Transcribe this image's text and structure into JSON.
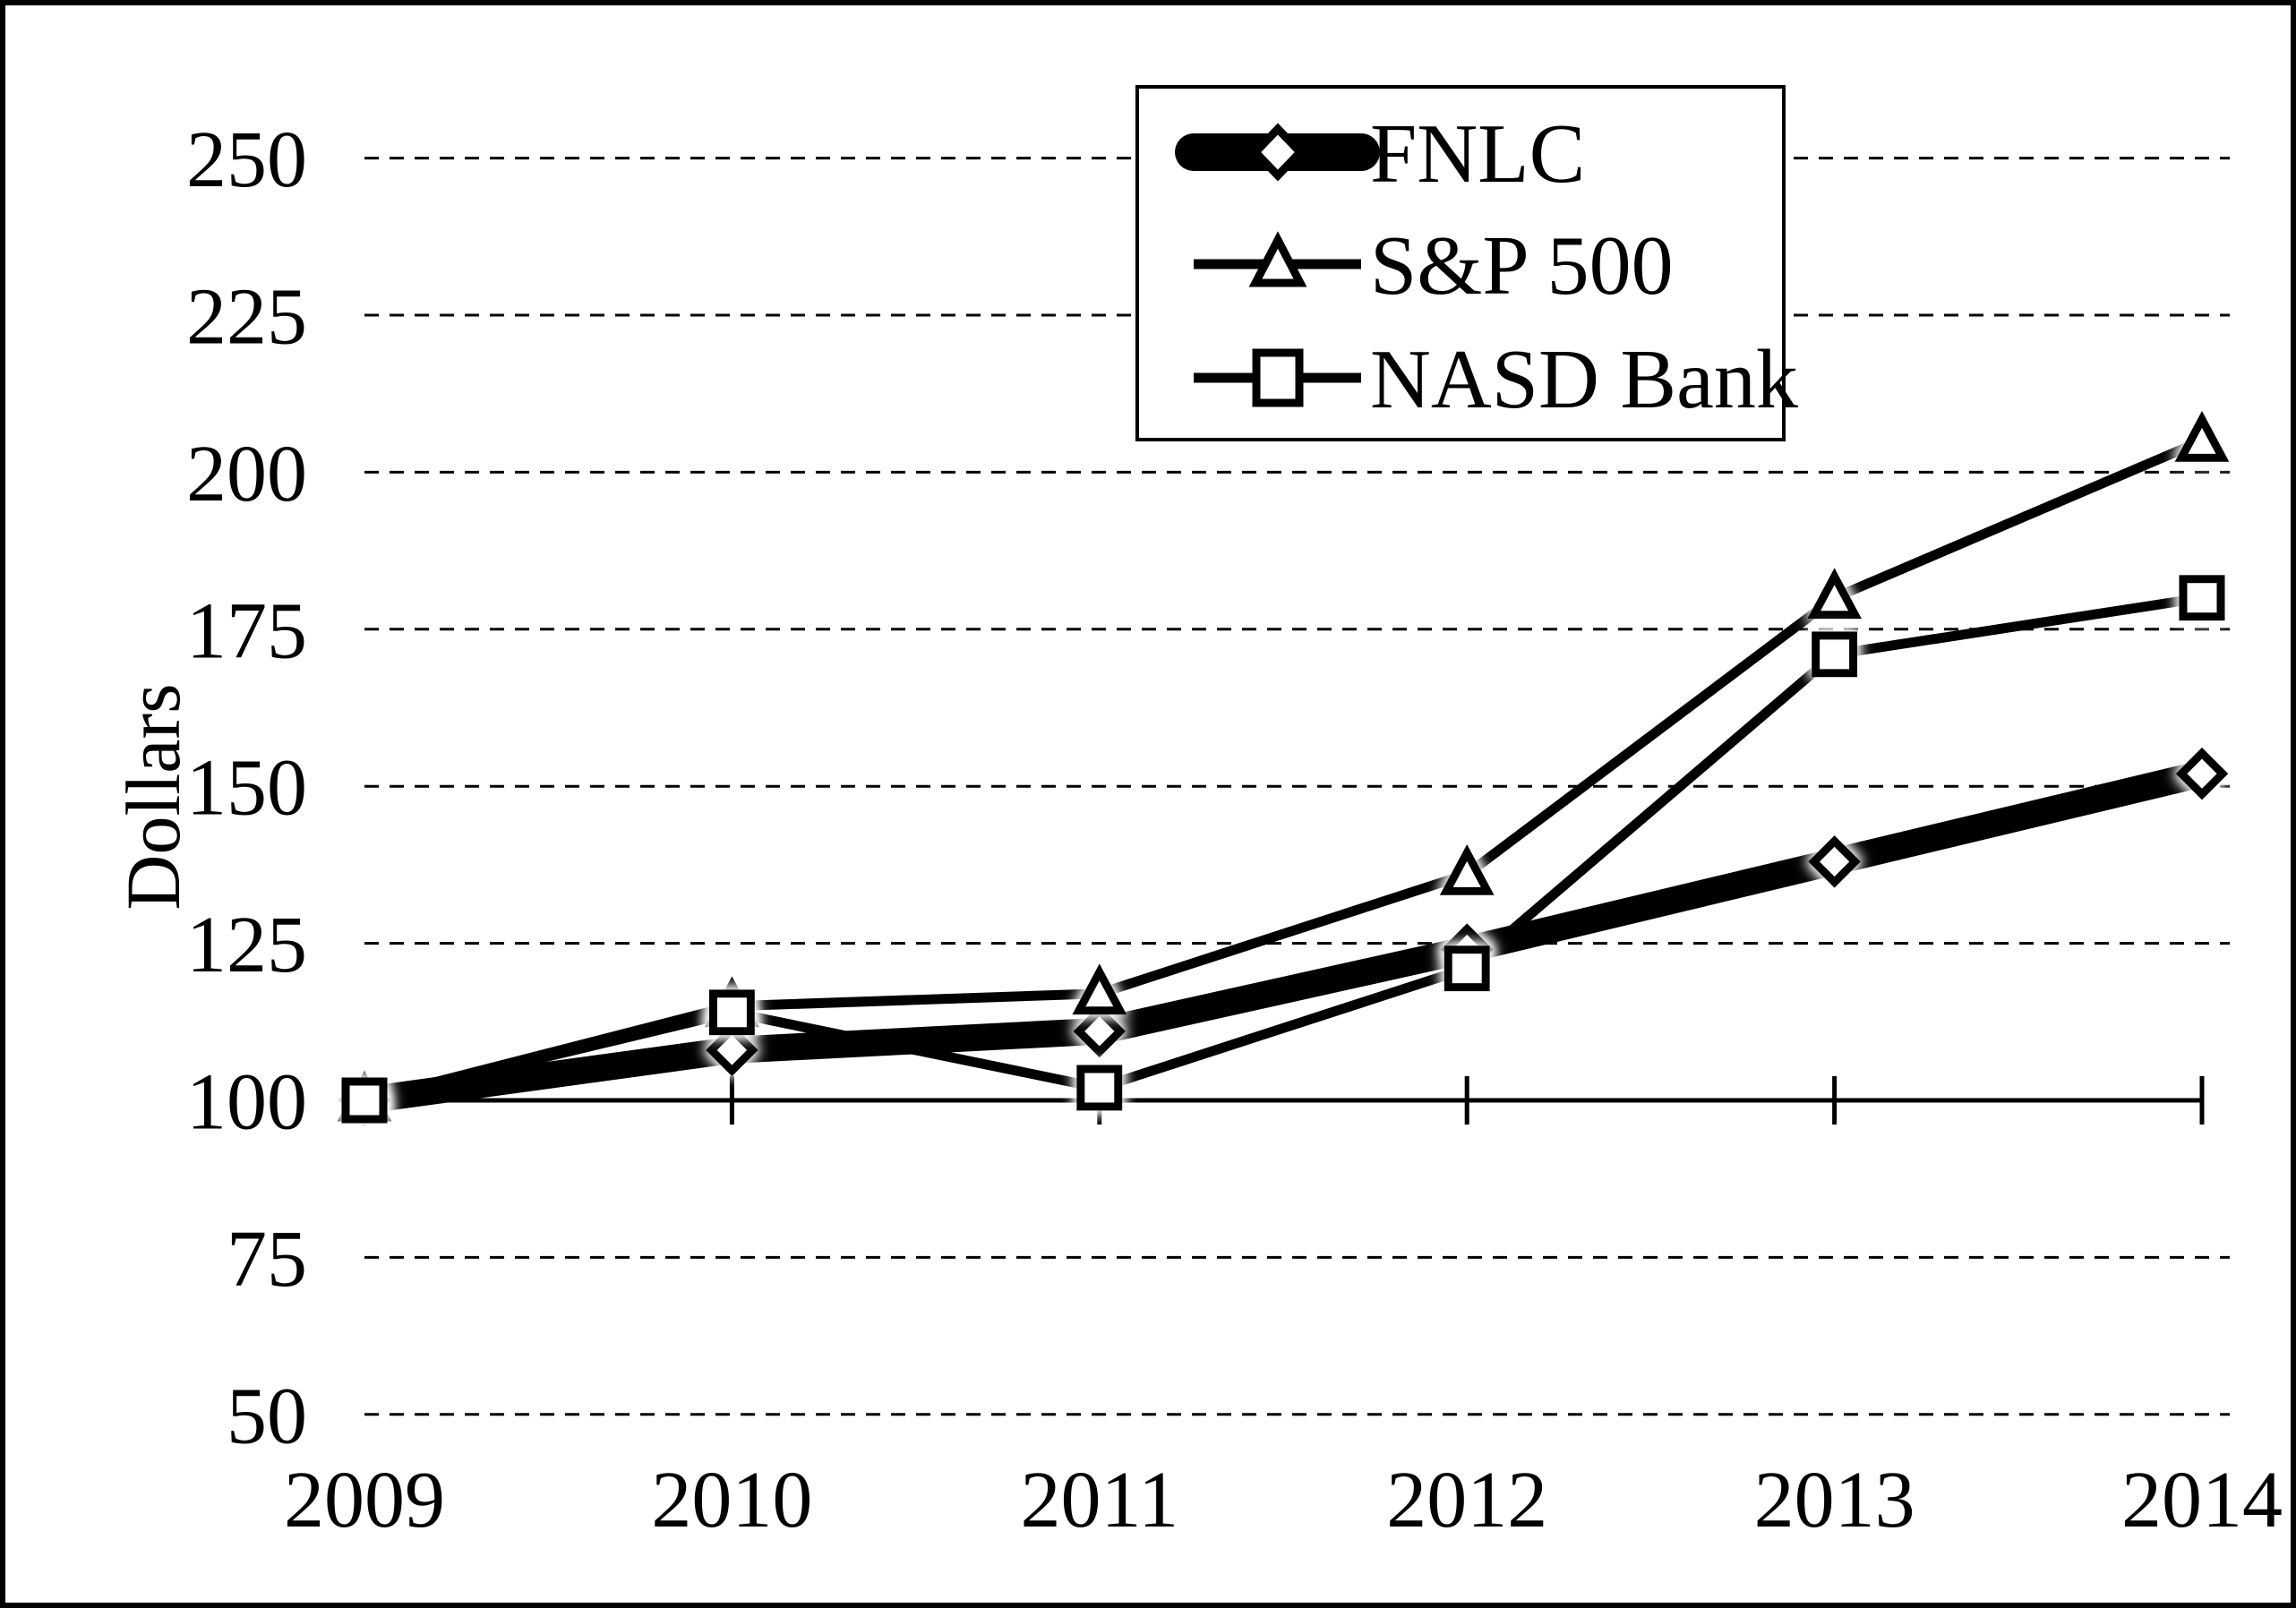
{
  "chart_data": {
    "type": "line",
    "title": "",
    "xlabel": "",
    "ylabel": "Dollars",
    "categories": [
      "2009",
      "2010",
      "2011",
      "2012",
      "2013",
      "2014"
    ],
    "series": [
      {
        "name": "FNLC",
        "marker": "diamond",
        "emphasis": "thick",
        "values": [
          100,
          108,
          111,
          124,
          138,
          152
        ]
      },
      {
        "name": "S&P 500",
        "marker": "triangle",
        "emphasis": "thin",
        "values": [
          100,
          115,
          117,
          136,
          180,
          205
        ]
      },
      {
        "name": "NASD Bank",
        "marker": "square",
        "emphasis": "thin",
        "values": [
          100,
          114,
          102,
          121,
          171,
          180
        ]
      }
    ],
    "y_ticks": [
      250,
      225,
      200,
      175,
      150,
      125,
      100,
      75,
      50
    ],
    "ylim": [
      50,
      250
    ],
    "axis_cross_value": 100,
    "grid": "dashed-horizontal",
    "legend_position": "top-center",
    "colors": {
      "foreground": "#000000",
      "background": "#ffffff"
    }
  }
}
